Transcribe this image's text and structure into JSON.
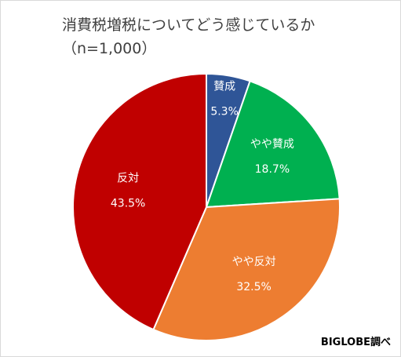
{
  "chart_data": {
    "type": "pie",
    "title": "消費税増税についてどう感じているか\n（n=1,000）",
    "categories": [
      "賛成",
      "やや賛成",
      "やや反対",
      "反対"
    ],
    "values": [
      5.3,
      18.7,
      32.5,
      43.5
    ],
    "value_labels": [
      "5.3%",
      "18.7%",
      "32.5%",
      "43.5%"
    ],
    "colors": [
      "#2f5597",
      "#00b050",
      "#ed7d31",
      "#c00000"
    ],
    "start": "12 o'clock",
    "direction": "clockwise",
    "legend": "none"
  },
  "source": "BIGLOBE調べ"
}
